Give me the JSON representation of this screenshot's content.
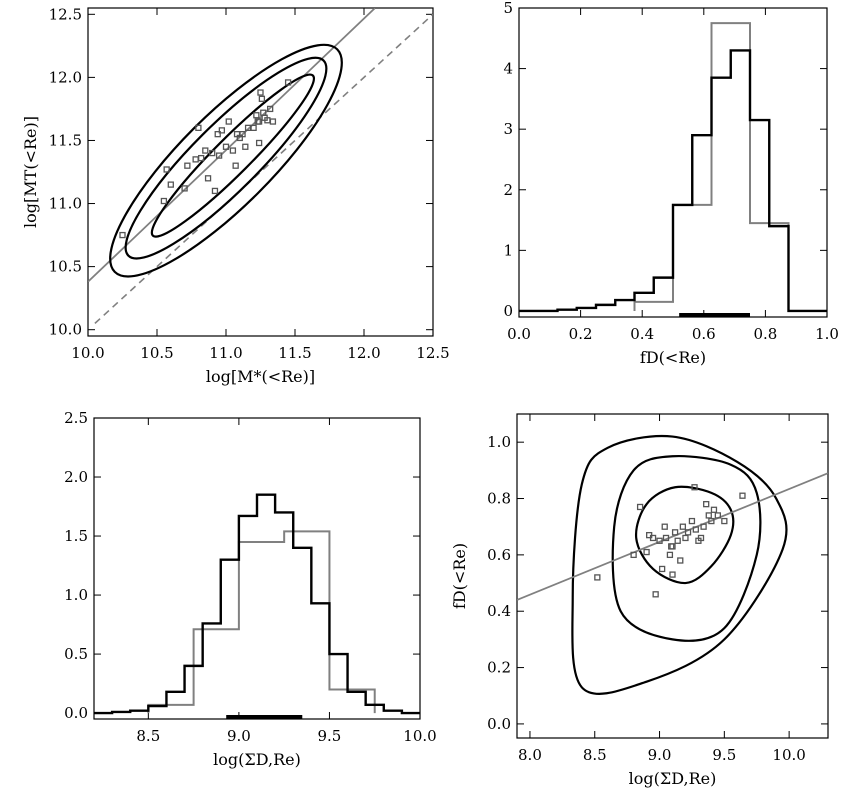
{
  "colors": {
    "black": "#000000",
    "gray": "#808080",
    "point_gray": "#555555"
  },
  "chart_data": [
    {
      "id": "mass",
      "type": "scatter",
      "xlabel": "log[M*(<Re)]",
      "ylabel": "log[MT(<Re)]",
      "xlim": [
        10.0,
        12.5
      ],
      "ylim": [
        9.95,
        12.55
      ],
      "xticks": [
        10.0,
        10.5,
        11.0,
        11.5,
        12.0,
        12.5
      ],
      "xtick_labels": [
        "10.0",
        "10.5",
        "11.0",
        "11.5",
        "12.0",
        "12.5"
      ],
      "yticks": [
        10.0,
        10.5,
        11.0,
        11.5,
        12.0,
        12.5
      ],
      "ytick_labels": [
        "10.0",
        "10.5",
        "11.0",
        "11.5",
        "12.0",
        "12.5"
      ],
      "points": [
        [
          10.25,
          10.75
        ],
        [
          10.55,
          11.02
        ],
        [
          10.57,
          11.27
        ],
        [
          10.6,
          11.15
        ],
        [
          10.7,
          11.12
        ],
        [
          10.72,
          11.3
        ],
        [
          10.78,
          11.35
        ],
        [
          10.8,
          11.6
        ],
        [
          10.82,
          11.36
        ],
        [
          10.85,
          11.42
        ],
        [
          10.87,
          11.2
        ],
        [
          10.9,
          11.4
        ],
        [
          10.92,
          11.1
        ],
        [
          10.94,
          11.55
        ],
        [
          10.95,
          11.38
        ],
        [
          10.97,
          11.58
        ],
        [
          11.0,
          11.45
        ],
        [
          11.02,
          11.65
        ],
        [
          11.05,
          11.42
        ],
        [
          11.07,
          11.3
        ],
        [
          11.08,
          11.55
        ],
        [
          11.1,
          11.52
        ],
        [
          11.12,
          11.55
        ],
        [
          11.14,
          11.45
        ],
        [
          11.16,
          11.6
        ],
        [
          11.2,
          11.6
        ],
        [
          11.22,
          11.7
        ],
        [
          11.23,
          11.65
        ],
        [
          11.24,
          11.65
        ],
        [
          11.25,
          11.88
        ],
        [
          11.26,
          11.83
        ],
        [
          11.27,
          11.72
        ],
        [
          11.28,
          11.68
        ],
        [
          11.3,
          11.66
        ],
        [
          11.32,
          11.75
        ],
        [
          11.34,
          11.65
        ],
        [
          11.45,
          11.96
        ],
        [
          11.24,
          11.48
        ]
      ],
      "fit_line": [
        [
          10.0,
          10.38
        ],
        [
          12.08,
          12.55
        ]
      ],
      "one_to_one": [
        [
          10.05,
          10.05
        ],
        [
          12.5,
          12.5
        ]
      ],
      "contours": [
        {
          "cx": 11.05,
          "cy": 11.38,
          "rx": 0.82,
          "ry": 0.13,
          "angle_deg": 45
        },
        {
          "cx": 11.0,
          "cy": 11.36,
          "rx": 1.0,
          "ry": 0.24,
          "angle_deg": 45
        },
        {
          "cx": 11.0,
          "cy": 11.34,
          "rx": 1.14,
          "ry": 0.33,
          "angle_deg": 45
        }
      ]
    },
    {
      "id": "fd",
      "type": "bar",
      "xlabel": "fD(<Re)",
      "ylabel": "",
      "xlim": [
        0.0,
        1.0
      ],
      "ylim": [
        -0.1,
        5.0
      ],
      "xticks": [
        0.0,
        0.2,
        0.4,
        0.6,
        0.8,
        1.0
      ],
      "xtick_labels": [
        "0.0",
        "0.2",
        "0.4",
        "0.6",
        "0.8",
        "1.0"
      ],
      "yticks": [
        0,
        1,
        2,
        3,
        4,
        5
      ],
      "ytick_labels": [
        "0",
        "1",
        "2",
        "3",
        "4",
        "5"
      ],
      "series": [
        {
          "bins": [
            0.0,
            0.0625,
            0.125,
            0.1875,
            0.25,
            0.3125,
            0.375,
            0.4375,
            0.5,
            0.5625,
            0.625,
            0.6875,
            0.75,
            0.8125,
            0.875,
            0.9375,
            1.0
          ],
          "values": [
            0.0,
            0.0,
            0.02,
            0.05,
            0.1,
            0.18,
            0.3,
            0.55,
            1.75,
            2.9,
            3.85,
            4.3,
            3.15,
            1.4,
            0.0,
            0.0
          ]
        },
        {
          "bins": [
            0.375,
            0.5,
            0.625,
            0.75,
            0.875
          ],
          "values": [
            0.15,
            1.75,
            4.75,
            1.45
          ]
        }
      ],
      "range_bar": [
        0.52,
        0.75
      ]
    },
    {
      "id": "sigma",
      "type": "bar",
      "xlabel": "log(ΣD,Re)",
      "ylabel": "",
      "xlim": [
        8.2,
        10.0
      ],
      "ylim": [
        -0.05,
        2.5
      ],
      "xticks": [
        8.5,
        9.0,
        9.5,
        10.0
      ],
      "xtick_labels": [
        "8.5",
        "9.0",
        "9.5",
        "10.0"
      ],
      "yticks": [
        0.0,
        0.5,
        1.0,
        1.5,
        2.0,
        2.5
      ],
      "ytick_labels": [
        "0.0",
        "0.5",
        "1.0",
        "1.5",
        "2.0",
        "2.5"
      ],
      "series": [
        {
          "bins": [
            8.2,
            8.3,
            8.4,
            8.5,
            8.6,
            8.7,
            8.8,
            8.9,
            9.0,
            9.1,
            9.2,
            9.3,
            9.4,
            9.5,
            9.6,
            9.7,
            9.8,
            9.9,
            10.0
          ],
          "values": [
            0.0,
            0.01,
            0.02,
            0.06,
            0.18,
            0.4,
            0.76,
            1.3,
            1.67,
            1.85,
            1.7,
            1.4,
            0.93,
            0.5,
            0.18,
            0.07,
            0.02,
            0.0
          ]
        },
        {
          "bins": [
            8.5,
            8.75,
            9.0,
            9.25,
            9.5,
            9.75
          ],
          "values": [
            0.07,
            0.71,
            1.45,
            1.54,
            0.2
          ]
        }
      ],
      "range_bar": [
        8.93,
        9.35
      ]
    },
    {
      "id": "fd_sigma",
      "type": "scatter",
      "xlabel": "log(ΣD,Re)",
      "ylabel": "fD(<Re)",
      "xlim": [
        7.9,
        10.3
      ],
      "ylim": [
        -0.05,
        1.1
      ],
      "xticks": [
        8.0,
        8.5,
        9.0,
        9.5,
        10.0
      ],
      "xtick_labels": [
        "8.0",
        "8.5",
        "9.0",
        "9.5",
        "10.0"
      ],
      "yticks": [
        0.0,
        0.2,
        0.4,
        0.6,
        0.8,
        1.0
      ],
      "ytick_labels": [
        "0.0",
        "0.2",
        "0.4",
        "0.6",
        "0.8",
        "1.0"
      ],
      "points": [
        [
          8.52,
          0.52
        ],
        [
          8.8,
          0.6
        ],
        [
          8.85,
          0.77
        ],
        [
          8.9,
          0.61
        ],
        [
          8.92,
          0.67
        ],
        [
          8.95,
          0.66
        ],
        [
          8.97,
          0.46
        ],
        [
          9.0,
          0.65
        ],
        [
          9.02,
          0.55
        ],
        [
          9.05,
          0.66
        ],
        [
          9.08,
          0.6
        ],
        [
          9.1,
          0.63
        ],
        [
          9.12,
          0.68
        ],
        [
          9.14,
          0.65
        ],
        [
          9.16,
          0.58
        ],
        [
          9.18,
          0.7
        ],
        [
          9.2,
          0.66
        ],
        [
          9.22,
          0.68
        ],
        [
          9.25,
          0.72
        ],
        [
          9.27,
          0.84
        ],
        [
          9.28,
          0.69
        ],
        [
          9.3,
          0.65
        ],
        [
          9.32,
          0.66
        ],
        [
          9.34,
          0.7
        ],
        [
          9.36,
          0.78
        ],
        [
          9.38,
          0.74
        ],
        [
          9.4,
          0.72
        ],
        [
          9.42,
          0.76
        ],
        [
          9.45,
          0.74
        ],
        [
          9.5,
          0.72
        ],
        [
          9.64,
          0.81
        ],
        [
          9.1,
          0.53
        ],
        [
          9.09,
          0.63
        ],
        [
          9.04,
          0.7
        ]
      ],
      "fit_line": [
        [
          7.9,
          0.44
        ],
        [
          10.3,
          0.89
        ]
      ],
      "contours": [
        [
          [
            8.95,
            0.55
          ],
          [
            9.2,
            0.5
          ],
          [
            9.4,
            0.56
          ],
          [
            9.55,
            0.67
          ],
          [
            9.55,
            0.76
          ],
          [
            9.4,
            0.82
          ],
          [
            9.12,
            0.84
          ],
          [
            8.9,
            0.78
          ],
          [
            8.82,
            0.66
          ]
        ],
        [
          [
            8.7,
            0.4
          ],
          [
            9.1,
            0.3
          ],
          [
            9.5,
            0.34
          ],
          [
            9.75,
            0.6
          ],
          [
            9.75,
            0.82
          ],
          [
            9.55,
            0.92
          ],
          [
            9.1,
            0.95
          ],
          [
            8.8,
            0.9
          ],
          [
            8.65,
            0.7
          ]
        ],
        [
          [
            8.4,
            0.13
          ],
          [
            8.9,
            0.15
          ],
          [
            9.5,
            0.3
          ],
          [
            9.95,
            0.62
          ],
          [
            9.9,
            0.8
          ],
          [
            9.6,
            0.93
          ],
          [
            9.1,
            1.02
          ],
          [
            8.6,
            0.98
          ],
          [
            8.4,
            0.85
          ],
          [
            8.33,
            0.45
          ]
        ]
      ]
    }
  ]
}
